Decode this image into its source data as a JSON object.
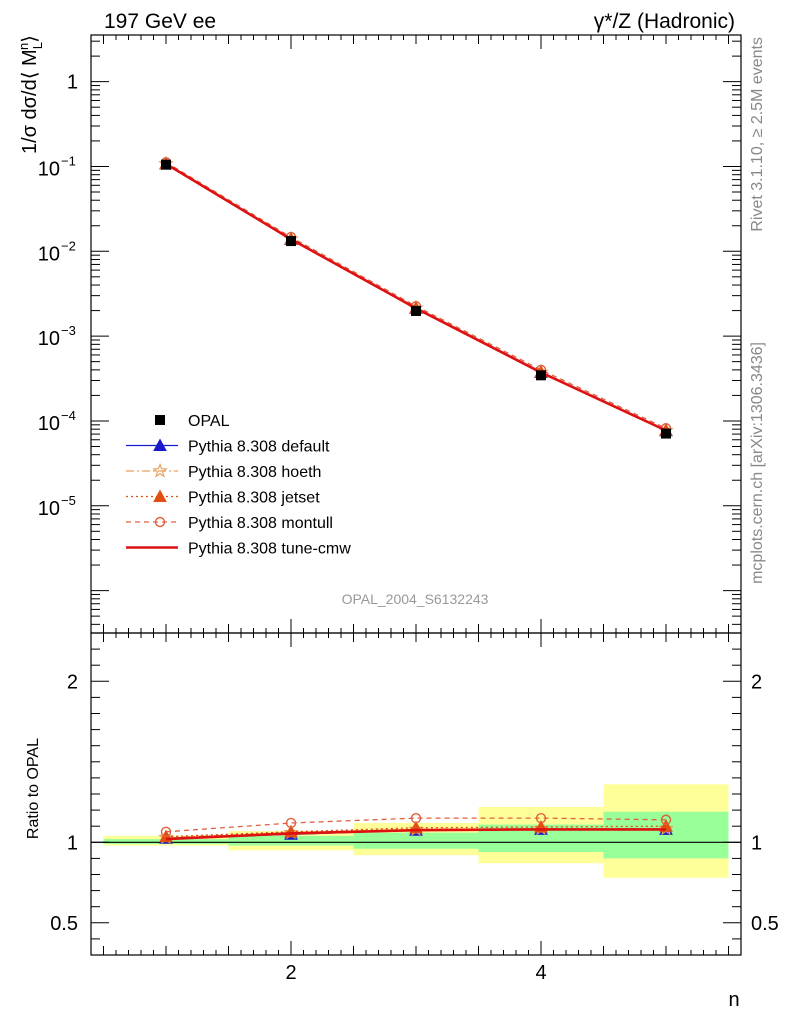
{
  "chart_data": {
    "type": "line",
    "header": {
      "left": "197 GeV ee",
      "right_main": "γ*/Z",
      "right_suffix": " (Hadronic)"
    },
    "side_labels": {
      "top": "Rivet 3.1.10, ≥ 2.5M events",
      "bottom": "mcplots.cern.ch [arXiv:1306.3436]"
    },
    "analysis_label": "OPAL_2004_S6132243",
    "xlabel": "n",
    "ylabel_main": "1/σ dσ/d⟨ M",
    "ylabel_main_sub": "L",
    "ylabel_main_sup": "n",
    "ylabel_main_end": "⟩",
    "ylabel_ratio": "Ratio to OPAL",
    "x_range": [
      0.4,
      5.6
    ],
    "y_range_main_log10": [
      -6.5,
      0.55
    ],
    "y_range_ratio": [
      0.3,
      2.3
    ],
    "x_ticks": [
      {
        "value": 2,
        "label": "2"
      },
      {
        "value": 4,
        "label": "4"
      }
    ],
    "y_ticks_main": [
      {
        "exp": 0,
        "base": "1",
        "sup": ""
      },
      {
        "exp": -1,
        "base": "10",
        "sup": "−1"
      },
      {
        "exp": -2,
        "base": "10",
        "sup": "−2"
      },
      {
        "exp": -3,
        "base": "10",
        "sup": "−3"
      },
      {
        "exp": -4,
        "base": "10",
        "sup": "−4"
      },
      {
        "exp": -5,
        "base": "10",
        "sup": "−5"
      }
    ],
    "y_ticks_ratio": [
      {
        "value": 0.5,
        "label": "0.5"
      },
      {
        "value": 1,
        "label": "1"
      },
      {
        "value": 2,
        "label": "2"
      }
    ],
    "bins": [
      {
        "lo": 0.5,
        "hi": 1.5
      },
      {
        "lo": 1.5,
        "hi": 2.5
      },
      {
        "lo": 2.5,
        "hi": 3.5
      },
      {
        "lo": 3.5,
        "hi": 4.5
      },
      {
        "lo": 4.5,
        "hi": 5.5
      }
    ],
    "x": [
      1,
      2,
      3,
      4,
      5
    ],
    "data": {
      "name": "OPAL",
      "values": [
        0.105,
        0.0132,
        0.00198,
        0.000345,
        7.1e-05
      ]
    },
    "ratio_bands": {
      "green": [
        [
          0.99,
          1.02
        ],
        [
          0.98,
          1.04
        ],
        [
          0.96,
          1.06
        ],
        [
          0.94,
          1.11
        ],
        [
          0.9,
          1.19
        ]
      ],
      "yellow": [
        [
          0.98,
          1.04
        ],
        [
          0.95,
          1.07
        ],
        [
          0.92,
          1.12
        ],
        [
          0.87,
          1.22
        ],
        [
          0.78,
          1.36
        ]
      ]
    },
    "series": [
      {
        "name": "Pythia 8.308 default",
        "color": "#1a1acc",
        "dash": "",
        "marker": "triangle",
        "values": [
          0.1075,
          0.0138,
          0.00213,
          0.000372,
          7.66e-05
        ],
        "ratio": [
          1.025,
          1.05,
          1.075,
          1.08,
          1.08
        ]
      },
      {
        "name": "Pythia 8.308 hoeth",
        "color": "#e8a060",
        "dash": "8,3,2,3",
        "marker": "star",
        "values": [
          0.1078,
          0.014,
          0.00214,
          0.000374,
          7.7e-05
        ],
        "ratio": [
          1.03,
          1.06,
          1.08,
          1.085,
          1.085
        ]
      },
      {
        "name": "Pythia 8.308 jetset",
        "color": "#e05010",
        "dash": "2,3",
        "marker": "triangle-filled",
        "values": [
          0.108,
          0.014,
          0.00216,
          0.000378,
          7.8e-05
        ],
        "ratio": [
          1.035,
          1.065,
          1.09,
          1.095,
          1.1
        ]
      },
      {
        "name": "Pythia 8.308 montull",
        "color": "#e06040",
        "dash": "5,4",
        "marker": "circle",
        "values": [
          0.112,
          0.0147,
          0.00225,
          0.0004,
          8.2e-05
        ],
        "ratio": [
          1.065,
          1.12,
          1.15,
          1.15,
          1.14
        ]
      },
      {
        "name": "Pythia 8.308 tune-cmw",
        "color": "#dd1111",
        "dash": "",
        "marker": "none",
        "values": [
          0.1073,
          0.0139,
          0.00213,
          0.000374,
          7.72e-05
        ],
        "ratio": [
          1.02,
          1.055,
          1.075,
          1.08,
          1.08
        ]
      }
    ]
  }
}
